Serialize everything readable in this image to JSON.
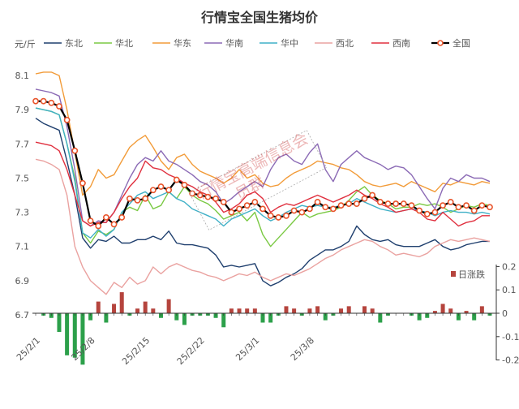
{
  "chart_data": {
    "type": "line",
    "title": "行情宝全国生猪均价",
    "unit_left": "元/斤",
    "x_labels": [
      "25/2/1",
      "25/2/8",
      "25/2/15",
      "25/2/22",
      "25/3/1",
      "25/3/8"
    ],
    "y_left_ticks": [
      "8.1",
      "7.9",
      "7.7",
      "7.5",
      "7.3",
      "7.1",
      "6.9",
      "6.7"
    ],
    "y_right_ticks": [
      "0.2",
      "0.1",
      "0",
      "-0.1",
      "-0.2"
    ],
    "ylim_left": [
      6.7,
      8.2
    ],
    "ylim_right": [
      -0.2,
      0.2
    ],
    "watermark": [
      "行情宝高端信息会",
      "员群"
    ],
    "series": [
      {
        "name": "东北",
        "color": "#1f3f6e",
        "values": [
          7.85,
          7.82,
          7.8,
          7.78,
          7.6,
          7.4,
          7.15,
          7.09,
          7.14,
          7.13,
          7.16,
          7.12,
          7.12,
          7.14,
          7.14,
          7.16,
          7.14,
          7.19,
          7.12,
          7.11,
          7.11,
          7.1,
          7.09,
          7.05,
          6.98,
          6.99,
          6.98,
          6.99,
          7.0,
          6.9,
          6.87,
          6.89,
          6.92,
          6.94,
          6.97,
          7.02,
          7.05,
          7.08,
          7.08,
          7.1,
          7.13,
          7.22,
          7.17,
          7.14,
          7.13,
          7.14,
          7.11,
          7.1,
          7.1,
          7.1,
          7.12,
          7.14,
          7.1,
          7.08,
          7.09,
          7.11,
          7.12,
          7.13,
          7.13
        ]
      },
      {
        "name": "华北",
        "color": "#7ac943",
        "values": [
          7.91,
          7.9,
          7.89,
          7.87,
          7.7,
          7.5,
          7.18,
          7.12,
          7.19,
          7.17,
          7.2,
          7.3,
          7.33,
          7.31,
          7.4,
          7.32,
          7.34,
          7.42,
          7.38,
          7.45,
          7.4,
          7.37,
          7.35,
          7.31,
          7.26,
          7.28,
          7.3,
          7.25,
          7.3,
          7.17,
          7.1,
          7.15,
          7.2,
          7.25,
          7.3,
          7.27,
          7.29,
          7.3,
          7.31,
          7.33,
          7.37,
          7.42,
          7.45,
          7.4,
          7.37,
          7.35,
          7.32,
          7.33,
          7.33,
          7.35,
          7.34,
          7.35,
          7.33,
          7.3,
          7.32,
          7.34,
          7.33,
          7.35,
          7.34
        ]
      },
      {
        "name": "华东",
        "color": "#f29b38",
        "values": [
          8.11,
          8.12,
          8.12,
          8.1,
          7.9,
          7.65,
          7.4,
          7.45,
          7.55,
          7.5,
          7.52,
          7.6,
          7.68,
          7.72,
          7.75,
          7.68,
          7.6,
          7.55,
          7.62,
          7.64,
          7.58,
          7.54,
          7.52,
          7.5,
          7.47,
          7.5,
          7.55,
          7.5,
          7.52,
          7.47,
          7.45,
          7.46,
          7.5,
          7.53,
          7.55,
          7.57,
          7.6,
          7.59,
          7.58,
          7.56,
          7.55,
          7.52,
          7.48,
          7.46,
          7.45,
          7.46,
          7.47,
          7.45,
          7.48,
          7.46,
          7.44,
          7.42,
          7.47,
          7.46,
          7.48,
          7.47,
          7.46,
          7.48,
          7.47
        ]
      },
      {
        "name": "华南",
        "color": "#8b6ab5",
        "values": [
          8.02,
          8.01,
          8.0,
          7.98,
          7.8,
          7.55,
          7.25,
          7.22,
          7.25,
          7.24,
          7.3,
          7.4,
          7.5,
          7.58,
          7.62,
          7.6,
          7.66,
          7.6,
          7.58,
          7.55,
          7.52,
          7.48,
          7.46,
          7.42,
          7.35,
          7.38,
          7.42,
          7.45,
          7.48,
          7.45,
          7.55,
          7.62,
          7.64,
          7.6,
          7.58,
          7.65,
          7.7,
          7.55,
          7.48,
          7.58,
          7.62,
          7.66,
          7.62,
          7.6,
          7.58,
          7.55,
          7.57,
          7.56,
          7.52,
          7.45,
          7.38,
          7.32,
          7.44,
          7.5,
          7.48,
          7.52,
          7.5,
          7.5,
          7.48
        ]
      },
      {
        "name": "华中",
        "color": "#3fb0c7",
        "values": [
          7.91,
          7.9,
          7.89,
          7.87,
          7.7,
          7.48,
          7.18,
          7.15,
          7.2,
          7.16,
          7.2,
          7.3,
          7.35,
          7.4,
          7.42,
          7.38,
          7.4,
          7.42,
          7.38,
          7.36,
          7.32,
          7.3,
          7.28,
          7.26,
          7.22,
          7.26,
          7.28,
          7.3,
          7.32,
          7.28,
          7.25,
          7.27,
          7.3,
          7.32,
          7.34,
          7.33,
          7.34,
          7.33,
          7.33,
          7.34,
          7.35,
          7.38,
          7.36,
          7.34,
          7.32,
          7.31,
          7.3,
          7.31,
          7.32,
          7.31,
          7.3,
          7.28,
          7.3,
          7.31,
          7.3,
          7.3,
          7.29,
          7.3,
          7.29
        ]
      },
      {
        "name": "西北",
        "color": "#eaa2a0",
        "values": [
          7.61,
          7.6,
          7.58,
          7.55,
          7.4,
          7.1,
          6.98,
          6.9,
          6.86,
          6.82,
          6.89,
          6.86,
          6.92,
          6.88,
          6.9,
          6.98,
          6.94,
          6.98,
          7.0,
          6.98,
          6.96,
          6.95,
          6.93,
          6.92,
          6.9,
          6.92,
          6.94,
          6.93,
          6.95,
          6.92,
          6.9,
          6.92,
          6.94,
          6.93,
          6.95,
          6.97,
          7.0,
          7.03,
          7.05,
          7.08,
          7.1,
          7.12,
          7.14,
          7.13,
          7.1,
          7.08,
          7.05,
          7.06,
          7.05,
          7.04,
          7.06,
          7.1,
          7.12,
          7.14,
          7.13,
          7.14,
          7.15,
          7.14,
          7.13
        ]
      },
      {
        "name": "西南",
        "color": "#e0303f",
        "values": [
          7.71,
          7.7,
          7.69,
          7.66,
          7.55,
          7.4,
          7.25,
          7.22,
          7.24,
          7.24,
          7.3,
          7.38,
          7.45,
          7.5,
          7.6,
          7.56,
          7.55,
          7.52,
          7.5,
          7.47,
          7.45,
          7.42,
          7.4,
          7.36,
          7.3,
          7.32,
          7.35,
          7.4,
          7.42,
          7.38,
          7.3,
          7.33,
          7.35,
          7.34,
          7.36,
          7.38,
          7.4,
          7.38,
          7.36,
          7.38,
          7.4,
          7.43,
          7.4,
          7.38,
          7.35,
          7.33,
          7.3,
          7.31,
          7.32,
          7.3,
          7.26,
          7.25,
          7.3,
          7.26,
          7.22,
          7.24,
          7.25,
          7.28,
          7.28
        ]
      },
      {
        "name": "全国",
        "color": "#000000",
        "marker_color": "#e8542b",
        "values": [
          7.95,
          7.95,
          7.94,
          7.92,
          7.84,
          7.66,
          7.47,
          7.25,
          7.22,
          7.27,
          7.23,
          7.27,
          7.38,
          7.37,
          7.38,
          7.43,
          7.45,
          7.43,
          7.49,
          7.46,
          7.41,
          7.4,
          7.39,
          7.38,
          7.36,
          7.3,
          7.32,
          7.34,
          7.36,
          7.32,
          7.28,
          7.27,
          7.28,
          7.31,
          7.3,
          7.32,
          7.36,
          7.33,
          7.32,
          7.34,
          7.35,
          7.35,
          7.38,
          7.4,
          7.36,
          7.35,
          7.35,
          7.35,
          7.34,
          7.31,
          7.29,
          7.3,
          7.34,
          7.36,
          7.33,
          7.34,
          7.31,
          7.34,
          7.33
        ]
      }
    ],
    "bar_series": {
      "name": "日涨跌",
      "values": [
        0.0,
        -0.01,
        -0.02,
        -0.08,
        -0.18,
        -0.19,
        -0.22,
        -0.03,
        0.05,
        -0.04,
        0.04,
        0.09,
        -0.01,
        0.02,
        0.05,
        0.02,
        -0.02,
        0.06,
        -0.03,
        -0.05,
        -0.01,
        -0.01,
        -0.01,
        -0.02,
        -0.06,
        0.02,
        0.02,
        0.02,
        0.02,
        -0.04,
        -0.04,
        -0.01,
        0.03,
        0.02,
        -0.01,
        0.02,
        0.03,
        -0.03,
        -0.01,
        0.02,
        0.03,
        0.0,
        0.03,
        0.02,
        -0.04,
        -0.01,
        0.0,
        0.0,
        -0.01,
        -0.03,
        -0.02,
        0.01,
        0.04,
        0.02,
        -0.03,
        0.01,
        -0.03,
        0.03,
        -0.01
      ]
    }
  }
}
